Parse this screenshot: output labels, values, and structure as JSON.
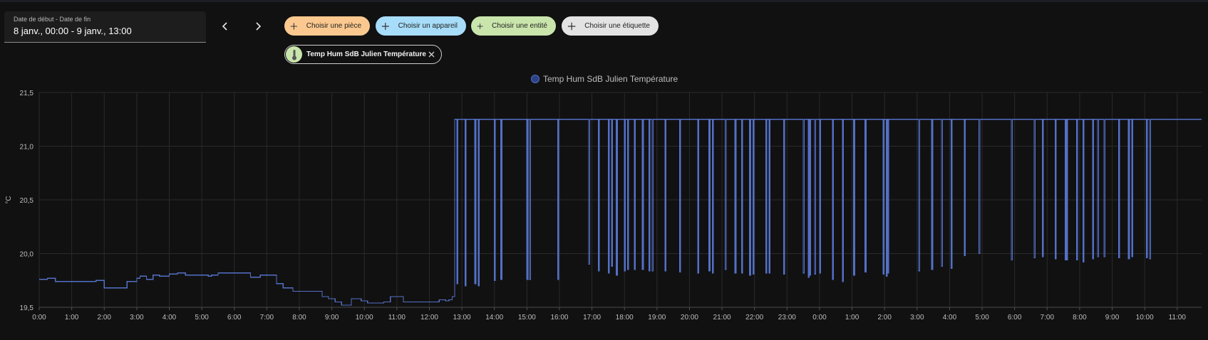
{
  "date_range": {
    "label": "Date de début - Date de fin",
    "value": "8 janv., 00:00 - 9 janv., 13:00"
  },
  "navigation": {
    "prev_icon": "chevron-left-icon",
    "next_icon": "chevron-right-icon"
  },
  "target_picker": {
    "area_label": "Choisir une pièce",
    "device_label": "Choisir un appareil",
    "entity_label": "Choisir une entité",
    "label_label": "Choisir une étiquette",
    "colors": {
      "area": "#fbc98f",
      "device": "#a7ddf9",
      "entity": "#c9e5ac",
      "label": "#e3e3e3"
    }
  },
  "selected_entity": {
    "name": "Temp Hum SdB Julien Température",
    "icon": "thermometer-icon",
    "remove_icon": "close-icon"
  },
  "chart_data": {
    "type": "line",
    "step": true,
    "title": "",
    "xlabel": "",
    "ylabel": "°C",
    "ylim": [
      19.5,
      21.5
    ],
    "yticks": [
      "21,5",
      "21,0",
      "20,5",
      "20,0",
      "19,5"
    ],
    "xlim": [
      0,
      35.75
    ],
    "xtick_labels": [
      "0:00",
      "1:00",
      "2:00",
      "3:00",
      "4:00",
      "5:00",
      "6:00",
      "7:00",
      "8:00",
      "9:00",
      "10:00",
      "11:00",
      "12:00",
      "13:00",
      "14:00",
      "15:00",
      "16:00",
      "17:00",
      "18:00",
      "19:00",
      "20:00",
      "21:00",
      "22:00",
      "23:00",
      "0:00",
      "1:00",
      "2:00",
      "3:00",
      "4:00",
      "5:00",
      "6:00",
      "7:00",
      "8:00",
      "9:00",
      "10:00",
      "11:00"
    ],
    "grid": true,
    "legend_position": "top-center",
    "series": [
      {
        "name": "Temp Hum SdB Julien Température",
        "color": "#5470c6",
        "x": [
          0,
          0.25,
          0.5,
          1.1,
          1.75,
          2.0,
          2.4,
          2.7,
          3.0,
          3.1,
          3.3,
          3.5,
          3.7,
          4.0,
          4.25,
          4.5,
          5.2,
          5.3,
          5.5,
          6.0,
          6.5,
          6.8,
          7.0,
          7.3,
          7.5,
          7.8,
          8.0,
          8.7,
          8.9,
          9.1,
          9.3,
          9.6,
          9.9,
          10.1,
          10.3,
          10.6,
          10.8,
          11.2,
          11.6,
          11.9,
          12.1,
          12.3,
          12.5,
          12.6,
          12.7,
          12.78
        ],
        "y": [
          19.76,
          19.77,
          19.74,
          19.74,
          19.75,
          19.68,
          19.68,
          19.74,
          19.77,
          19.79,
          19.76,
          19.8,
          19.79,
          19.81,
          19.82,
          19.8,
          19.79,
          19.8,
          19.82,
          19.82,
          19.78,
          19.8,
          19.8,
          19.72,
          19.68,
          19.65,
          19.65,
          19.6,
          19.58,
          19.55,
          19.52,
          19.58,
          19.56,
          19.54,
          19.54,
          19.55,
          19.6,
          19.55,
          19.55,
          19.55,
          19.55,
          19.57,
          19.56,
          19.57,
          19.6,
          21.25
        ],
        "high_value": 21.25,
        "drops": [
          [
            12.85,
            19.72
          ],
          [
            13.1,
            19.7
          ],
          [
            13.4,
            19.72
          ],
          [
            13.5,
            19.7
          ],
          [
            14.0,
            19.75
          ],
          [
            14.2,
            19.76
          ],
          [
            15.0,
            19.76
          ],
          [
            15.08,
            19.76
          ],
          [
            15.95,
            19.76
          ],
          [
            16.9,
            19.9
          ],
          [
            17.2,
            19.84
          ],
          [
            17.5,
            19.82
          ],
          [
            17.6,
            19.88
          ],
          [
            17.75,
            19.8
          ],
          [
            18.0,
            19.84
          ],
          [
            18.1,
            19.85
          ],
          [
            18.3,
            19.85
          ],
          [
            18.55,
            19.85
          ],
          [
            18.75,
            19.84
          ],
          [
            18.85,
            19.84
          ],
          [
            19.25,
            19.84
          ],
          [
            19.7,
            19.83
          ],
          [
            20.25,
            19.82
          ],
          [
            20.6,
            19.84
          ],
          [
            20.7,
            19.82
          ],
          [
            21.1,
            19.85
          ],
          [
            21.4,
            19.82
          ],
          [
            21.6,
            19.82
          ],
          [
            21.85,
            19.8
          ],
          [
            21.95,
            19.81
          ],
          [
            22.35,
            19.82
          ],
          [
            22.45,
            19.82
          ],
          [
            22.9,
            19.81
          ],
          [
            23.5,
            19.82
          ],
          [
            23.65,
            19.78
          ],
          [
            23.7,
            19.8
          ],
          [
            23.85,
            19.81
          ],
          [
            24.0,
            19.82
          ],
          [
            24.4,
            19.76
          ],
          [
            24.7,
            19.74
          ],
          [
            25.05,
            19.8
          ],
          [
            25.4,
            19.83
          ],
          [
            25.95,
            19.81
          ],
          [
            26.05,
            19.79
          ],
          [
            26.1,
            19.82
          ],
          [
            27.05,
            19.84
          ],
          [
            27.45,
            19.85
          ],
          [
            27.75,
            19.88
          ],
          [
            28.05,
            19.86
          ],
          [
            28.45,
            19.98
          ],
          [
            28.9,
            20.0
          ],
          [
            29.9,
            19.94
          ],
          [
            30.6,
            19.96
          ],
          [
            30.85,
            19.97
          ],
          [
            31.25,
            19.95
          ],
          [
            31.55,
            19.94
          ],
          [
            31.6,
            19.94
          ],
          [
            31.9,
            19.94
          ],
          [
            32.1,
            19.92
          ],
          [
            32.4,
            19.95
          ],
          [
            32.55,
            19.97
          ],
          [
            32.75,
            19.97
          ],
          [
            33.2,
            19.96
          ],
          [
            33.5,
            19.95
          ],
          [
            33.6,
            19.97
          ],
          [
            34.05,
            19.96
          ],
          [
            34.15,
            19.95
          ]
        ]
      }
    ]
  }
}
